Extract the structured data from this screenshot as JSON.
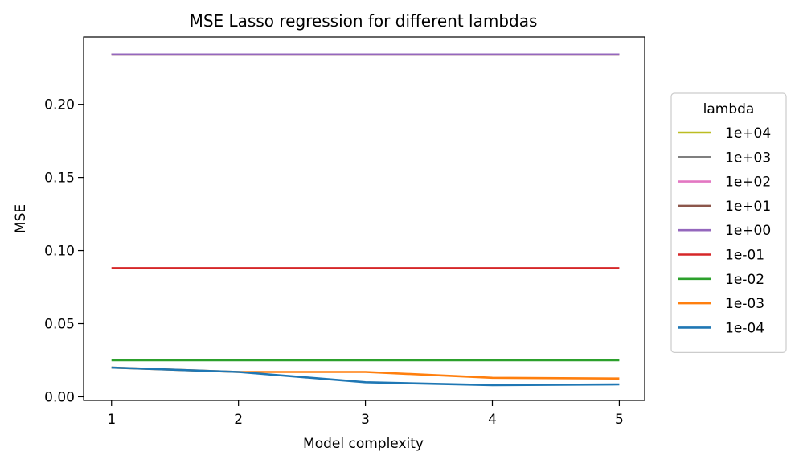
{
  "chart_data": {
    "type": "line",
    "title": "MSE Lasso regression for different lambdas",
    "xlabel": "Model complexity",
    "ylabel": "MSE",
    "x": [
      1,
      2,
      3,
      4,
      5
    ],
    "xticks": [
      "1",
      "2",
      "3",
      "4",
      "5"
    ],
    "yticks": [
      "0.00",
      "0.05",
      "0.10",
      "0.15",
      "0.20"
    ],
    "xlim": [
      0.78,
      5.2
    ],
    "ylim": [
      -0.0025,
      0.246
    ],
    "grid": false,
    "legend": {
      "title": "lambda",
      "placement": "outside-right"
    },
    "series": [
      {
        "name": "1e+04",
        "color": "#bcbd22",
        "values": [
          0.234,
          0.234,
          0.234,
          0.234,
          0.234
        ]
      },
      {
        "name": "1e+03",
        "color": "#7f7f7f",
        "values": [
          0.234,
          0.234,
          0.234,
          0.234,
          0.234
        ]
      },
      {
        "name": "1e+02",
        "color": "#e377c2",
        "values": [
          0.234,
          0.234,
          0.234,
          0.234,
          0.234
        ]
      },
      {
        "name": "1e+01",
        "color": "#8c564b",
        "values": [
          0.234,
          0.234,
          0.234,
          0.234,
          0.234
        ]
      },
      {
        "name": "1e+00",
        "color": "#9467bd",
        "values": [
          0.234,
          0.234,
          0.234,
          0.234,
          0.234
        ]
      },
      {
        "name": "1e-01",
        "color": "#d62728",
        "values": [
          0.088,
          0.088,
          0.088,
          0.088,
          0.088
        ]
      },
      {
        "name": "1e-02",
        "color": "#2ca02c",
        "values": [
          0.025,
          0.025,
          0.025,
          0.025,
          0.025
        ]
      },
      {
        "name": "1e-03",
        "color": "#ff7f0e",
        "values": [
          0.02,
          0.017,
          0.017,
          0.013,
          0.0125
        ]
      },
      {
        "name": "1e-04",
        "color": "#1f77b4",
        "values": [
          0.02,
          0.017,
          0.01,
          0.008,
          0.0085
        ]
      }
    ]
  }
}
